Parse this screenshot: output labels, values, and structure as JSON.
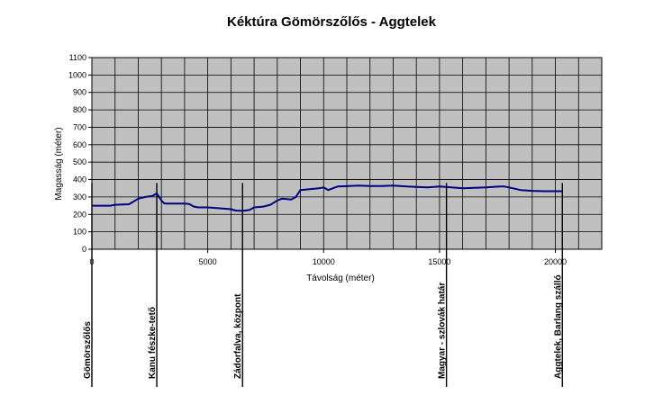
{
  "chart_data": {
    "type": "line",
    "title": "Kéktúra Gömörszőlős - Aggtelek",
    "xlabel": "Távolság (méter)",
    "ylabel": "Magasság (méter)",
    "xlim": [
      0,
      22000
    ],
    "ylim": [
      0,
      1100
    ],
    "x_ticks": [
      0,
      5000,
      10000,
      15000,
      20000
    ],
    "y_ticks": [
      0,
      100,
      200,
      300,
      400,
      500,
      600,
      700,
      800,
      900,
      1000,
      1100
    ],
    "grid": true,
    "legend": "none",
    "plot_background": "#c0c0c0",
    "line_color": "#000080",
    "series": [
      {
        "x": [
          0,
          800,
          1000,
          1600,
          2000,
          2300,
          2600,
          2800,
          3000,
          3100,
          3200,
          4000,
          4200,
          4400,
          4600,
          5000,
          5500,
          6000,
          6200,
          6500,
          6800,
          7000,
          7400,
          7700,
          8000,
          8200,
          8600,
          8800,
          9000,
          9400,
          9800,
          10000,
          10200,
          10600,
          11000,
          11500,
          12000,
          12500,
          13000,
          13600,
          14000,
          14500,
          15000,
          15500,
          16000,
          16500,
          17000,
          17600,
          17800,
          18000,
          18500,
          19000,
          19500,
          20000,
          20300
        ],
        "y": [
          250,
          250,
          255,
          258,
          290,
          300,
          305,
          320,
          280,
          265,
          262,
          262,
          260,
          245,
          240,
          240,
          235,
          230,
          222,
          220,
          225,
          240,
          245,
          255,
          280,
          290,
          285,
          300,
          340,
          345,
          350,
          355,
          340,
          360,
          362,
          365,
          363,
          363,
          365,
          360,
          358,
          355,
          360,
          355,
          350,
          352,
          355,
          360,
          360,
          355,
          340,
          335,
          333,
          333,
          333
        ]
      }
    ],
    "markers": [
      {
        "x": 0,
        "label": "Gömörszőlős"
      },
      {
        "x": 2800,
        "label": "Kanu fészke-tető"
      },
      {
        "x": 6500,
        "label": "Zádorfalva, központ"
      },
      {
        "x": 15300,
        "label": "Magyar - szlovák határ"
      },
      {
        "x": 20300,
        "label": "Aggtelek, Barlang szálló"
      }
    ]
  }
}
